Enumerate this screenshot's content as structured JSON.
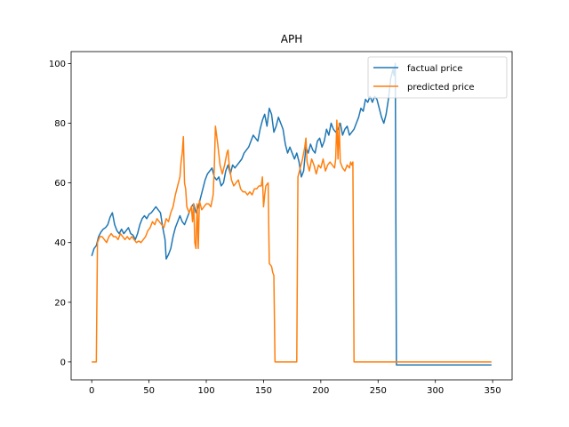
{
  "chart_data": {
    "type": "line",
    "title": "APH",
    "xlabel": "",
    "ylabel": "",
    "xlim": [
      -18,
      367
    ],
    "ylim": [
      -6,
      104
    ],
    "xticks": [
      0,
      50,
      100,
      150,
      200,
      250,
      300,
      350
    ],
    "yticks": [
      0,
      20,
      40,
      60,
      80,
      100
    ],
    "grid": false,
    "legend_position": "top-right",
    "series": [
      {
        "name": "factual price",
        "color": "#1f77b4",
        "points": [
          [
            0,
            35.5
          ],
          [
            2,
            38
          ],
          [
            4,
            39
          ],
          [
            6,
            42
          ],
          [
            8,
            43.5
          ],
          [
            10,
            44.5
          ],
          [
            12,
            45
          ],
          [
            14,
            46
          ],
          [
            16,
            48.5
          ],
          [
            18,
            50
          ],
          [
            20,
            46
          ],
          [
            22,
            44
          ],
          [
            24,
            43
          ],
          [
            26,
            44.5
          ],
          [
            28,
            43
          ],
          [
            30,
            44
          ],
          [
            32,
            45
          ],
          [
            34,
            43
          ],
          [
            36,
            42.5
          ],
          [
            38,
            41
          ],
          [
            40,
            43
          ],
          [
            42,
            46
          ],
          [
            44,
            48
          ],
          [
            46,
            49
          ],
          [
            48,
            48
          ],
          [
            50,
            49.5
          ],
          [
            52,
            50
          ],
          [
            54,
            51
          ],
          [
            56,
            52
          ],
          [
            58,
            51
          ],
          [
            60,
            50
          ],
          [
            62,
            45
          ],
          [
            64,
            41
          ],
          [
            65,
            34.5
          ],
          [
            67,
            36
          ],
          [
            69,
            38
          ],
          [
            71,
            42
          ],
          [
            73,
            45
          ],
          [
            75,
            47
          ],
          [
            77,
            49
          ],
          [
            79,
            47
          ],
          [
            81,
            46
          ],
          [
            83,
            48
          ],
          [
            85,
            50
          ],
          [
            87,
            52
          ],
          [
            89,
            53
          ],
          [
            91,
            50
          ],
          [
            93,
            52
          ],
          [
            95,
            55
          ],
          [
            97,
            58
          ],
          [
            99,
            61
          ],
          [
            101,
            63
          ],
          [
            103,
            64
          ],
          [
            105,
            65
          ],
          [
            107,
            62
          ],
          [
            109,
            61
          ],
          [
            111,
            62
          ],
          [
            113,
            59
          ],
          [
            115,
            60
          ],
          [
            117,
            64
          ],
          [
            119,
            66
          ],
          [
            121,
            63
          ],
          [
            123,
            66
          ],
          [
            125,
            65
          ],
          [
            127,
            66
          ],
          [
            129,
            67
          ],
          [
            131,
            68
          ],
          [
            133,
            70
          ],
          [
            135,
            71
          ],
          [
            137,
            72
          ],
          [
            139,
            74
          ],
          [
            141,
            76
          ],
          [
            143,
            75
          ],
          [
            145,
            74
          ],
          [
            147,
            78
          ],
          [
            149,
            81
          ],
          [
            151,
            83
          ],
          [
            153,
            79
          ],
          [
            155,
            85
          ],
          [
            157,
            83
          ],
          [
            159,
            77
          ],
          [
            161,
            79
          ],
          [
            163,
            82
          ],
          [
            165,
            80
          ],
          [
            167,
            78
          ],
          [
            169,
            73
          ],
          [
            171,
            70
          ],
          [
            173,
            72
          ],
          [
            175,
            70
          ],
          [
            177,
            68
          ],
          [
            179,
            70
          ],
          [
            181,
            67
          ],
          [
            183,
            62
          ],
          [
            185,
            64
          ],
          [
            187,
            72
          ],
          [
            189,
            70
          ],
          [
            191,
            73
          ],
          [
            193,
            71
          ],
          [
            195,
            70
          ],
          [
            197,
            74
          ],
          [
            199,
            75
          ],
          [
            201,
            72
          ],
          [
            203,
            74
          ],
          [
            205,
            78
          ],
          [
            207,
            76
          ],
          [
            209,
            80
          ],
          [
            211,
            78
          ],
          [
            213,
            77
          ],
          [
            215,
            78
          ],
          [
            217,
            80
          ],
          [
            219,
            76
          ],
          [
            221,
            78
          ],
          [
            223,
            79
          ],
          [
            225,
            76
          ],
          [
            227,
            77
          ],
          [
            229,
            78
          ],
          [
            231,
            80
          ],
          [
            233,
            82
          ],
          [
            235,
            85
          ],
          [
            237,
            84
          ],
          [
            239,
            88
          ],
          [
            241,
            87
          ],
          [
            243,
            89
          ],
          [
            245,
            87
          ],
          [
            247,
            89
          ],
          [
            249,
            88
          ],
          [
            251,
            85
          ],
          [
            253,
            82
          ],
          [
            255,
            80
          ],
          [
            257,
            83
          ],
          [
            259,
            88
          ],
          [
            261,
            95
          ],
          [
            263,
            98
          ],
          [
            264,
            96
          ],
          [
            265,
            100
          ],
          [
            266,
            -1
          ],
          [
            300,
            -1
          ],
          [
            349,
            -1
          ]
        ]
      },
      {
        "name": "predicted price",
        "color": "#ff7f0e",
        "points": [
          [
            0,
            0
          ],
          [
            4,
            0
          ],
          [
            5,
            40
          ],
          [
            7,
            42
          ],
          [
            9,
            42
          ],
          [
            11,
            41
          ],
          [
            13,
            40
          ],
          [
            15,
            42
          ],
          [
            17,
            43
          ],
          [
            19,
            42
          ],
          [
            21,
            42
          ],
          [
            23,
            41
          ],
          [
            25,
            43
          ],
          [
            27,
            42
          ],
          [
            29,
            41
          ],
          [
            31,
            42
          ],
          [
            33,
            41
          ],
          [
            35,
            42
          ],
          [
            37,
            41
          ],
          [
            39,
            40
          ],
          [
            41,
            40.5
          ],
          [
            43,
            40
          ],
          [
            45,
            41
          ],
          [
            47,
            42
          ],
          [
            49,
            44
          ],
          [
            51,
            45
          ],
          [
            53,
            47
          ],
          [
            55,
            46
          ],
          [
            57,
            48
          ],
          [
            59,
            47
          ],
          [
            61,
            46
          ],
          [
            63,
            45
          ],
          [
            65,
            48
          ],
          [
            67,
            47
          ],
          [
            69,
            50
          ],
          [
            71,
            52
          ],
          [
            73,
            56
          ],
          [
            75,
            59
          ],
          [
            77,
            62
          ],
          [
            78,
            67
          ],
          [
            79,
            70
          ],
          [
            80,
            75.5
          ],
          [
            81,
            60
          ],
          [
            82,
            58
          ],
          [
            83,
            52
          ],
          [
            85,
            50
          ],
          [
            87,
            52
          ],
          [
            88,
            47
          ],
          [
            89,
            53
          ],
          [
            90,
            40
          ],
          [
            91,
            38
          ],
          [
            92,
            53
          ],
          [
            93,
            38
          ],
          [
            94,
            54
          ],
          [
            96,
            51
          ],
          [
            98,
            52
          ],
          [
            100,
            53
          ],
          [
            102,
            53
          ],
          [
            104,
            52
          ],
          [
            106,
            56
          ],
          [
            107,
            65
          ],
          [
            108,
            79
          ],
          [
            109,
            76
          ],
          [
            110,
            73
          ],
          [
            112,
            66
          ],
          [
            114,
            63
          ],
          [
            116,
            66
          ],
          [
            118,
            70
          ],
          [
            119,
            71
          ],
          [
            120,
            66
          ],
          [
            122,
            61
          ],
          [
            124,
            59
          ],
          [
            126,
            60
          ],
          [
            128,
            61
          ],
          [
            130,
            58
          ],
          [
            132,
            57
          ],
          [
            134,
            57
          ],
          [
            136,
            56
          ],
          [
            138,
            57
          ],
          [
            140,
            56
          ],
          [
            142,
            58
          ],
          [
            144,
            58
          ],
          [
            146,
            59
          ],
          [
            148,
            59
          ],
          [
            149,
            62
          ],
          [
            150,
            52
          ],
          [
            151,
            56
          ],
          [
            152,
            59
          ],
          [
            154,
            60
          ],
          [
            155,
            33
          ],
          [
            157,
            32
          ],
          [
            158,
            30
          ],
          [
            159,
            29
          ],
          [
            160,
            0
          ],
          [
            162,
            0
          ],
          [
            178,
            0
          ],
          [
            179,
            0
          ],
          [
            180,
            62
          ],
          [
            182,
            65
          ],
          [
            184,
            68
          ],
          [
            186,
            72
          ],
          [
            187,
            75
          ],
          [
            188,
            67
          ],
          [
            190,
            64
          ],
          [
            192,
            68
          ],
          [
            194,
            66
          ],
          [
            196,
            63
          ],
          [
            198,
            66
          ],
          [
            200,
            65
          ],
          [
            202,
            68
          ],
          [
            204,
            64
          ],
          [
            206,
            66
          ],
          [
            208,
            67
          ],
          [
            210,
            66
          ],
          [
            212,
            65
          ],
          [
            213,
            68
          ],
          [
            214,
            81
          ],
          [
            215,
            68
          ],
          [
            216,
            80
          ],
          [
            217,
            67
          ],
          [
            219,
            65
          ],
          [
            221,
            64
          ],
          [
            223,
            66
          ],
          [
            225,
            65
          ],
          [
            226,
            67
          ],
          [
            227,
            66
          ],
          [
            228,
            67
          ],
          [
            229,
            0
          ],
          [
            260,
            0
          ],
          [
            300,
            0
          ],
          [
            349,
            0
          ]
        ]
      }
    ]
  }
}
